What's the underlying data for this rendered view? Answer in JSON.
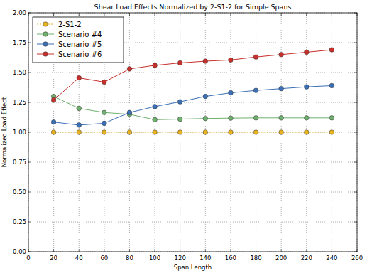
{
  "chart_data": {
    "type": "line",
    "title": "Shear Load Effects Normalized by 2-S1-2 for Simple Spans",
    "x_label": "Span Length",
    "y_label": "Normalized Load Effect",
    "x": [
      20,
      40,
      60,
      80,
      100,
      120,
      140,
      160,
      180,
      200,
      220,
      240
    ],
    "series": [
      {
        "name": "2-S1-2",
        "color": "#e8b321",
        "marker": "circle",
        "line_style": "dotted",
        "values": [
          1.0,
          1.0,
          1.0,
          1.0,
          1.0,
          1.0,
          1.0,
          1.0,
          1.0,
          1.0,
          1.0,
          1.0
        ]
      },
      {
        "name": "Scenario #4",
        "color": "#6fb06f",
        "marker": "circle",
        "line_style": "solid",
        "values": [
          1.3,
          1.2,
          1.165,
          1.15,
          1.105,
          1.11,
          1.115,
          1.118,
          1.12,
          1.12,
          1.12,
          1.12
        ]
      },
      {
        "name": "Scenario #5",
        "color": "#3b6fb6",
        "marker": "circle",
        "line_style": "solid",
        "values": [
          1.085,
          1.06,
          1.075,
          1.165,
          1.215,
          1.255,
          1.3,
          1.33,
          1.35,
          1.365,
          1.38,
          1.39
        ]
      },
      {
        "name": "Scenario #6",
        "color": "#c8302c",
        "marker": "circle",
        "line_style": "solid",
        "values": [
          1.27,
          1.455,
          1.42,
          1.53,
          1.56,
          1.58,
          1.595,
          1.605,
          1.63,
          1.65,
          1.67,
          1.69
        ]
      }
    ],
    "xlim": [
      0,
      260
    ],
    "xticks": [
      0,
      20,
      40,
      60,
      80,
      100,
      120,
      140,
      160,
      180,
      200,
      220,
      240,
      260
    ],
    "ylim": [
      0,
      2
    ],
    "yticks": [
      {
        "value": 0,
        "label": "0.00"
      },
      0.25,
      {
        "value": 0.5,
        "label": "0.50"
      },
      0.75,
      {
        "value": 1,
        "label": "1.00"
      },
      1.25,
      {
        "value": 1.5,
        "label": "1.50"
      },
      1.75,
      {
        "value": 2,
        "label": "2.00"
      }
    ],
    "grid": true,
    "legend": "upper left"
  }
}
